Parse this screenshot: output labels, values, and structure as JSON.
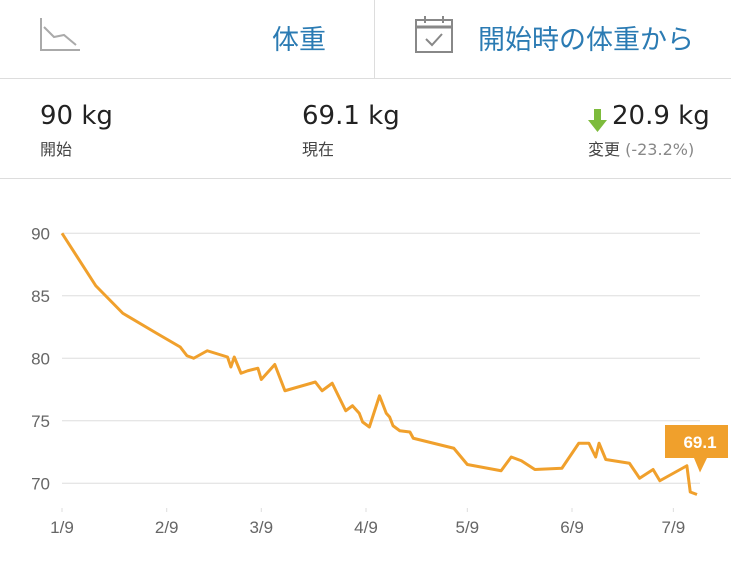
{
  "header": {
    "tabs": [
      "体重",
      "開始時の体重から"
    ]
  },
  "stats": [
    {
      "value": "90 kg",
      "label": "開始"
    },
    {
      "value": "69.1 kg",
      "label": "現在"
    },
    {
      "value": "20.9 kg",
      "label": "変更",
      "detail": "(-23.2%)"
    }
  ],
  "chart_data": {
    "type": "line",
    "x": [
      0,
      10,
      18,
      28,
      35,
      37,
      39,
      43,
      49,
      50,
      51,
      53,
      55,
      58,
      59,
      63,
      66,
      75,
      77,
      80,
      84,
      86,
      88,
      89,
      91,
      94,
      96,
      97,
      98,
      100,
      103,
      104,
      116,
      120,
      130,
      133,
      136,
      140,
      148,
      153,
      156,
      158,
      159,
      161,
      168,
      171,
      175,
      177,
      185,
      186,
      188
    ],
    "values": [
      90,
      85.8,
      83.6,
      82,
      80.9,
      80.2,
      80,
      80.6,
      80.1,
      79.3,
      80.1,
      78.8,
      79,
      79.2,
      78.3,
      79.5,
      77.4,
      78.1,
      77.4,
      78,
      75.8,
      76.2,
      75.6,
      74.9,
      74.5,
      77,
      75.6,
      75.3,
      74.6,
      74.2,
      74.1,
      73.6,
      72.8,
      71.5,
      71,
      72.1,
      71.8,
      71.1,
      71.2,
      73.2,
      73.2,
      72.1,
      73.2,
      71.9,
      71.6,
      70.4,
      71.1,
      70.2,
      71.4,
      69.3,
      69.1
    ],
    "color": "#f0a02c",
    "xlim": [
      0,
      188
    ],
    "xticks": [
      {
        "value": 0,
        "label": "1/9"
      },
      {
        "value": 31,
        "label": "2/9"
      },
      {
        "value": 59,
        "label": "3/9"
      },
      {
        "value": 90,
        "label": "4/9"
      },
      {
        "value": 120,
        "label": "5/9"
      },
      {
        "value": 151,
        "label": "6/9"
      },
      {
        "value": 181,
        "label": "7/9"
      }
    ],
    "ylim": [
      68.5,
      90.5
    ],
    "yticks": [
      70,
      75,
      80,
      85,
      90
    ],
    "grid": true
  }
}
